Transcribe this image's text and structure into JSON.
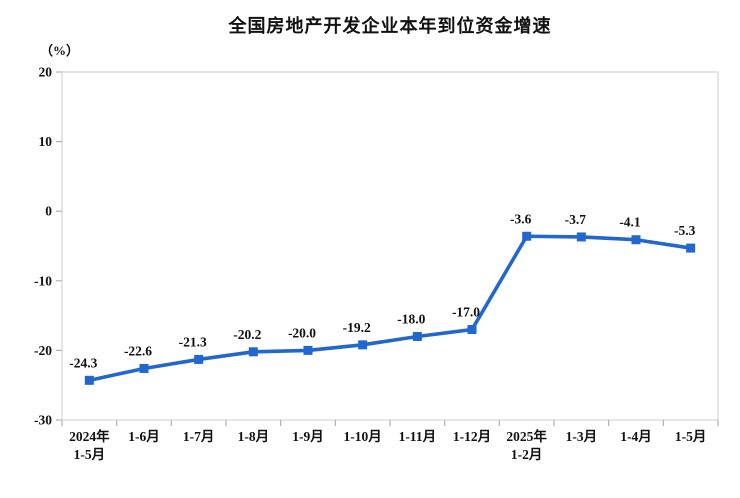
{
  "header": {
    "title": "全国房地产开发企业本年到位资金增速",
    "unit_label": "（%）"
  },
  "chart_data": {
    "type": "line",
    "title": "全国房地产开发企业本年到位资金增速",
    "ylabel": "（%）",
    "xlabel": "",
    "categories": [
      [
        "2024年",
        "1-5月"
      ],
      [
        "1-6月"
      ],
      [
        "1-7月"
      ],
      [
        "1-8月"
      ],
      [
        "1-9月"
      ],
      [
        "1-10月"
      ],
      [
        "1-11月"
      ],
      [
        "1-12月"
      ],
      [
        "2025年",
        "1-2月"
      ],
      [
        "1-3月"
      ],
      [
        "1-4月"
      ],
      [
        "1-5月"
      ]
    ],
    "series": [
      {
        "name": "本年到位资金增速",
        "values": [
          -24.3,
          -22.6,
          -21.3,
          -20.2,
          -20.0,
          -19.2,
          -18.0,
          -17.0,
          -3.6,
          -3.7,
          -4.1,
          -5.3
        ],
        "point_labels": [
          "-24.3",
          "-22.6",
          "-21.3",
          "-20.2",
          "-20.0",
          "-19.2",
          "-18.0",
          "-17.0",
          "-3.6",
          "-3.7",
          "-4.1",
          "-5.3"
        ]
      }
    ],
    "ylim": [
      -30,
      20
    ],
    "yticks": [
      20,
      10,
      0,
      -10,
      -20,
      -30
    ],
    "grid": false,
    "legend_position": "none",
    "marker": "square",
    "colors": {
      "line": "#2267cd",
      "plot_border": "#d6d6d6",
      "tick": "#b0b0b0",
      "text": "#111111"
    }
  }
}
